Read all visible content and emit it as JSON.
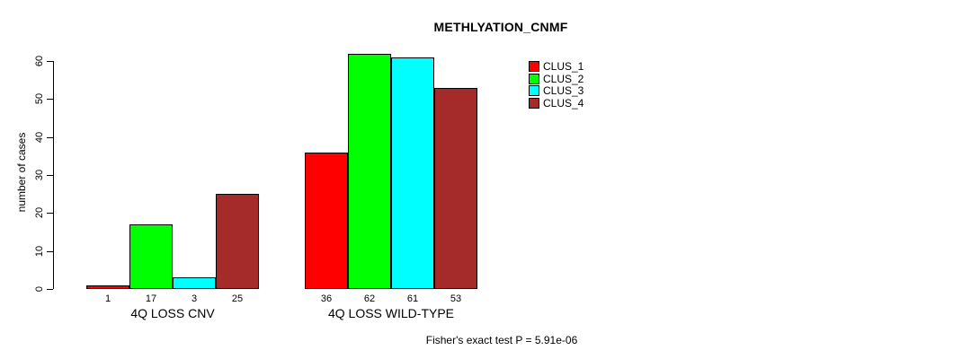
{
  "chart_data": {
    "type": "bar",
    "title": "METHLYATION_CNMF",
    "ylabel": "number of cases",
    "xlabel": "",
    "ylim": [
      0,
      60
    ],
    "yticks": [
      0,
      10,
      20,
      30,
      40,
      50,
      60
    ],
    "grid": false,
    "legend_position": "top-right",
    "categories": [
      "4Q LOSS CNV",
      "4Q LOSS WILD-TYPE"
    ],
    "series": [
      {
        "name": "CLUS_1",
        "color": "#ff0000",
        "values": [
          1,
          36
        ]
      },
      {
        "name": "CLUS_2",
        "color": "#00ff00",
        "values": [
          17,
          62
        ]
      },
      {
        "name": "CLUS_3",
        "color": "#00ffff",
        "values": [
          3,
          61
        ]
      },
      {
        "name": "CLUS_4",
        "color": "#a52a2a",
        "values": [
          25,
          53
        ]
      }
    ],
    "bar_value_labels": [
      [
        1,
        17,
        3,
        25
      ],
      [
        36,
        62,
        61,
        53
      ]
    ],
    "caption": "Fisher's exact test P = 5.91e-06"
  }
}
